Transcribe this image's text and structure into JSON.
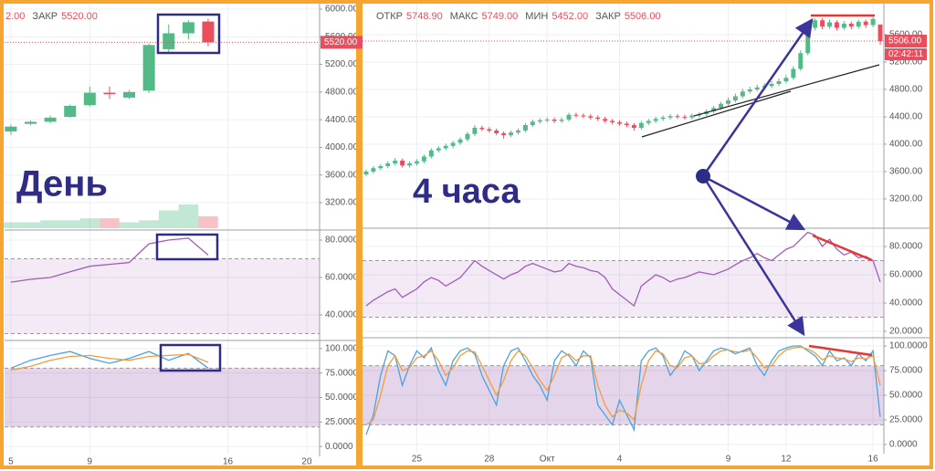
{
  "chart_data": [
    {
      "type": "candlestick",
      "legend": [
        {
          "value": "2.00"
        },
        {
          "name": "ЗАКР",
          "value": "5520.00"
        }
      ],
      "annotation": "День",
      "x": [
        5,
        6,
        7,
        8,
        9,
        10,
        11,
        12,
        13,
        14,
        15
      ],
      "xlim": [
        4.68,
        20.65
      ],
      "xticks": [
        5,
        9,
        16,
        20
      ],
      "open": [
        4230,
        4340,
        4370,
        4440,
        4610,
        4790,
        4720,
        4820,
        5420,
        5650,
        5820
      ],
      "high": [
        4330,
        4390,
        4460,
        4620,
        4880,
        4880,
        4830,
        5500,
        5780,
        5840,
        5860
      ],
      "low": [
        4180,
        4320,
        4350,
        4430,
        4590,
        4700,
        4700,
        4790,
        5370,
        5560,
        5460
      ],
      "close": [
        4300,
        4370,
        4430,
        4600,
        4790,
        4770,
        4800,
        5480,
        5650,
        5810,
        5520
      ],
      "volume": [
        3,
        3,
        4,
        4,
        5,
        5,
        3,
        4,
        9,
        12,
        6
      ],
      "up_color": "#53b987",
      "down_color": "#eb4d5c",
      "last_price": {
        "value": 5520,
        "label": "5520.00"
      },
      "ylim": [
        2830,
        6066
      ],
      "yticks": [
        {
          "value": 3200,
          "label": "3200.00"
        },
        {
          "value": 3600,
          "label": "3600.00"
        },
        {
          "value": 4000,
          "label": "4000.00"
        },
        {
          "value": 4400,
          "label": "4400.00"
        },
        {
          "value": 4800,
          "label": "4800.00"
        },
        {
          "value": 5200,
          "label": "5200.00"
        },
        {
          "value": 5600,
          "label": "5600.00"
        },
        {
          "value": 6000,
          "label": "6000.00"
        }
      ]
    },
    {
      "type": "line",
      "bands": [
        30,
        70
      ],
      "band_color": "#9c4fb0",
      "series": [
        {
          "color": "#a05db8",
          "values": [
            57.5,
            59,
            60,
            63,
            66,
            67,
            68,
            78,
            80,
            81,
            72
          ]
        }
      ],
      "ylim": [
        27.8,
        83.9
      ],
      "yticks": [
        {
          "value": 40,
          "label": "40.0000"
        },
        {
          "value": 60,
          "label": "60.0000"
        },
        {
          "value": 80,
          "label": "80.0000"
        }
      ]
    },
    {
      "type": "line",
      "bands": [
        20,
        80
      ],
      "band_color": "#8a3fa0",
      "series": [
        {
          "color": "#4aa3df",
          "values": [
            80,
            88,
            93,
            97,
            90,
            85,
            90,
            97,
            88,
            95,
            80
          ]
        },
        {
          "color": "#f39c3d",
          "values": [
            78,
            82,
            88,
            92,
            93,
            90,
            88,
            92,
            93,
            94,
            86
          ]
        }
      ],
      "ylim": [
        -7.3,
        106.4
      ],
      "yticks": [
        {
          "value": 0,
          "label": "0.0000"
        },
        {
          "value": 25,
          "label": "25.0000"
        },
        {
          "value": 50,
          "label": "50.0000"
        },
        {
          "value": 75,
          "label": "75.0000"
        },
        {
          "value": 100,
          "label": "100.0000"
        }
      ]
    },
    {
      "type": "candlestick",
      "legend": [
        {
          "name": "ОТКР",
          "value": "5748.90"
        },
        {
          "name": "МАКС",
          "value": "5749.00"
        },
        {
          "name": "МИН",
          "value": "5452.00"
        },
        {
          "name": "ЗАКР",
          "value": "5506.00"
        }
      ],
      "annotation": "4 часа",
      "categories": [
        null,
        null,
        null,
        null,
        null,
        null,
        null,
        "25",
        null,
        null,
        null,
        null,
        null,
        null,
        null,
        null,
        null,
        "28",
        null,
        null,
        null,
        null,
        null,
        null,
        null,
        "Окт",
        null,
        null,
        null,
        null,
        null,
        null,
        null,
        null,
        null,
        "4",
        null,
        null,
        null,
        null,
        null,
        null,
        null,
        null,
        null,
        null,
        null,
        null,
        null,
        null,
        "9",
        null,
        null,
        null,
        null,
        null,
        null,
        null,
        "12",
        null,
        null,
        null,
        null,
        null,
        null,
        null,
        null,
        null,
        null,
        null,
        "16",
        null
      ],
      "open": [
        3560,
        3600,
        3650,
        3680,
        3720,
        3760,
        3690,
        3720,
        3750,
        3820,
        3910,
        3940,
        3975,
        4020,
        4070,
        4150,
        4240,
        4220,
        4200,
        4160,
        4130,
        4170,
        4200,
        4280,
        4330,
        4350,
        4360,
        4340,
        4360,
        4430,
        4420,
        4410,
        4390,
        4370,
        4340,
        4320,
        4300,
        4280,
        4240,
        4310,
        4340,
        4370,
        4390,
        4410,
        4400,
        4390,
        4420,
        4440,
        4480,
        4530,
        4590,
        4640,
        4700,
        4770,
        4800,
        4830,
        4850,
        4880,
        4920,
        4970,
        5100,
        5330,
        5700,
        5810,
        5720,
        5780,
        5700,
        5760,
        5720,
        5790,
        5740,
        5748.9
      ],
      "high": [
        3630,
        3680,
        3710,
        3750,
        3800,
        3790,
        3750,
        3780,
        3850,
        3940,
        3970,
        4010,
        4050,
        4100,
        4180,
        4280,
        4270,
        4250,
        4230,
        4190,
        4200,
        4230,
        4310,
        4360,
        4380,
        4390,
        4390,
        4390,
        4460,
        4460,
        4450,
        4440,
        4420,
        4400,
        4370,
        4350,
        4330,
        4310,
        4340,
        4370,
        4400,
        4420,
        4440,
        4440,
        4430,
        4450,
        4470,
        4510,
        4560,
        4620,
        4680,
        4740,
        4810,
        4840,
        4870,
        4890,
        4920,
        4960,
        5010,
        5140,
        5370,
        5760,
        5840,
        5840,
        5820,
        5810,
        5800,
        5790,
        5820,
        5820,
        5860,
        5749
      ],
      "low": [
        3530,
        3570,
        3620,
        3650,
        3690,
        3660,
        3660,
        3690,
        3720,
        3790,
        3880,
        3910,
        3940,
        3990,
        4040,
        4120,
        4190,
        4170,
        4130,
        4080,
        4100,
        4140,
        4170,
        4250,
        4300,
        4320,
        4310,
        4310,
        4330,
        4390,
        4380,
        4360,
        4340,
        4310,
        4290,
        4270,
        4250,
        4200,
        4210,
        4280,
        4310,
        4340,
        4360,
        4370,
        4360,
        4360,
        4390,
        4410,
        4450,
        4500,
        4560,
        4610,
        4670,
        4740,
        4770,
        4800,
        4820,
        4850,
        4890,
        4940,
        5070,
        5300,
        5660,
        5680,
        5690,
        5660,
        5670,
        5680,
        5690,
        5700,
        5710,
        5452
      ],
      "close": [
        3600,
        3650,
        3680,
        3720,
        3760,
        3690,
        3720,
        3750,
        3820,
        3910,
        3940,
        3975,
        4020,
        4070,
        4150,
        4240,
        4220,
        4200,
        4160,
        4130,
        4170,
        4200,
        4280,
        4330,
        4350,
        4360,
        4340,
        4360,
        4430,
        4420,
        4410,
        4390,
        4370,
        4340,
        4320,
        4300,
        4280,
        4240,
        4310,
        4340,
        4370,
        4390,
        4410,
        4400,
        4390,
        4420,
        4440,
        4480,
        4530,
        4590,
        4640,
        4700,
        4770,
        4800,
        4830,
        4850,
        4880,
        4920,
        4970,
        5100,
        5330,
        5700,
        5810,
        5720,
        5780,
        5700,
        5760,
        5720,
        5790,
        5740,
        5830,
        5506
      ],
      "up_color": "#53b987",
      "down_color": "#eb4d5c",
      "last_price": {
        "value": 5506,
        "label": "5506.00"
      },
      "countdown": "02:42:11",
      "ylim": [
        2773,
        6040
      ],
      "yticks": [
        {
          "value": 3200,
          "label": "3200.00"
        },
        {
          "value": 3600,
          "label": "3600.00"
        },
        {
          "value": 4000,
          "label": "4000.00"
        },
        {
          "value": 4400,
          "label": "4400.00"
        },
        {
          "value": 4800,
          "label": "4800.00"
        },
        {
          "value": 5200,
          "label": "5200.00"
        },
        {
          "value": 5600,
          "label": "5600.00"
        }
      ]
    },
    {
      "type": "line",
      "bands": [
        30,
        70
      ],
      "band_color": "#9c4fb0",
      "series": [
        {
          "color": "#a05db8",
          "values": [
            38,
            42,
            45,
            48,
            50,
            44,
            47,
            50,
            55,
            58,
            56,
            52,
            55,
            58,
            64,
            70,
            66,
            63,
            60,
            57,
            60,
            62,
            66,
            68,
            66,
            64,
            62,
            63,
            68,
            66,
            65,
            63,
            62,
            58,
            50,
            46,
            42,
            38,
            52,
            56,
            60,
            58,
            55,
            57,
            58,
            60,
            62,
            61,
            60,
            62,
            64,
            67,
            70,
            72,
            75,
            72,
            70,
            74,
            78,
            80,
            85,
            90,
            88,
            80,
            85,
            78,
            74,
            76,
            72,
            73,
            70,
            55
          ]
        }
      ],
      "ylim": [
        16.8,
        91.6
      ],
      "yticks": [
        {
          "value": 20,
          "label": "20.0000"
        },
        {
          "value": 40,
          "label": "40.0000"
        },
        {
          "value": 60,
          "label": "60.0000"
        },
        {
          "value": 80,
          "label": "80.0000"
        }
      ]
    },
    {
      "type": "line",
      "bands": [
        20,
        80
      ],
      "band_color": "#8a3fa0",
      "series": [
        {
          "color": "#4aa3df",
          "values": [
            10,
            30,
            70,
            95,
            90,
            60,
            80,
            95,
            88,
            98,
            75,
            60,
            85,
            95,
            98,
            92,
            70,
            55,
            40,
            80,
            95,
            98,
            85,
            70,
            60,
            45,
            85,
            95,
            90,
            80,
            95,
            88,
            40,
            30,
            20,
            45,
            30,
            15,
            85,
            95,
            98,
            90,
            70,
            80,
            95,
            90,
            75,
            85,
            95,
            98,
            96,
            92,
            95,
            98,
            80,
            70,
            85,
            95,
            98,
            100,
            100,
            95,
            90,
            80,
            95,
            85,
            88,
            80,
            92,
            85,
            95,
            28
          ]
        },
        {
          "color": "#f39c3d",
          "values": [
            20,
            25,
            50,
            80,
            90,
            75,
            78,
            88,
            90,
            95,
            85,
            70,
            78,
            90,
            95,
            94,
            80,
            65,
            50,
            65,
            85,
            95,
            90,
            78,
            65,
            55,
            70,
            88,
            92,
            85,
            90,
            90,
            60,
            40,
            28,
            35,
            32,
            25,
            60,
            85,
            95,
            92,
            80,
            78,
            88,
            90,
            82,
            83,
            90,
            95,
            96,
            94,
            94,
            96,
            88,
            78,
            80,
            90,
            96,
            98,
            99,
            97,
            93,
            86,
            90,
            88,
            87,
            84,
            88,
            87,
            90,
            60
          ]
        }
      ],
      "ylim": [
        -7.4,
        105.6
      ],
      "yticks": [
        {
          "value": 0,
          "label": "0.0000"
        },
        {
          "value": 25,
          "label": "25.0000"
        },
        {
          "value": 50,
          "label": "50.0000"
        },
        {
          "value": 75,
          "label": "75.0000"
        },
        {
          "value": 100,
          "label": "100.0000"
        }
      ]
    }
  ]
}
